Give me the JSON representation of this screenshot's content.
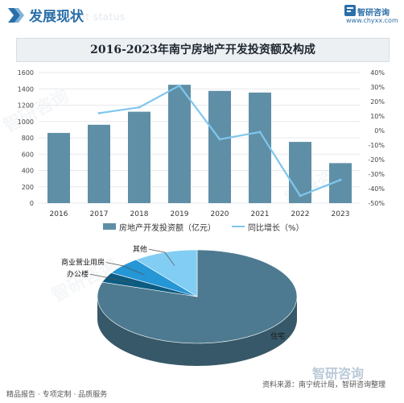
{
  "header": {
    "title": "发展现状",
    "subtitle": "ment status",
    "brand_name": "智研咨询",
    "brand_url": "www.chyxx.com"
  },
  "chart_data": [
    {
      "type": "bar",
      "title": "2016-2023年南宁房地产开发投资额及构成",
      "categories": [
        "2016",
        "2017",
        "2018",
        "2019",
        "2020",
        "2021",
        "2022",
        "2023"
      ],
      "series": [
        {
          "name": "房地产开发投资额（亿元）",
          "type": "bar",
          "axis": "left",
          "values": [
            860,
            960,
            1120,
            1450,
            1375,
            1355,
            750,
            490
          ]
        },
        {
          "name": "同比增长（%）",
          "type": "line",
          "axis": "right",
          "values": [
            null,
            12,
            16,
            31,
            -6,
            -1,
            -45,
            -34
          ]
        }
      ],
      "y_left": {
        "min": 0,
        "max": 1600,
        "step": 200,
        "ticks": [
          "0",
          "200",
          "400",
          "600",
          "800",
          "1000",
          "1200",
          "1400",
          "1600"
        ]
      },
      "y_right": {
        "min": -50,
        "max": 40,
        "step": 10,
        "ticks": [
          "-50%",
          "-40%",
          "-30%",
          "-20%",
          "-10%",
          "0%",
          "10%",
          "20%",
          "30%",
          "40%"
        ]
      },
      "legend_position": "bottom",
      "colors": {
        "bar": "#5f8fa6",
        "line": "#7fc6ee"
      }
    },
    {
      "type": "pie",
      "style": "3d",
      "labels": [
        "住宅",
        "办公楼",
        "商业营业用房",
        "其他"
      ],
      "values": [
        80,
        3.5,
        6,
        10.5
      ],
      "colors": [
        "#4d7a90",
        "#0b5b82",
        "#2596d6",
        "#82cdf3"
      ]
    }
  ],
  "footer": {
    "left": "精品报告 · 专项定制 · 品质服务",
    "right": "资料来源：南宁统计局，智研咨询整理"
  },
  "watermarks": [
    "智研咨询",
    "智研咨询",
    "智研咨询"
  ]
}
